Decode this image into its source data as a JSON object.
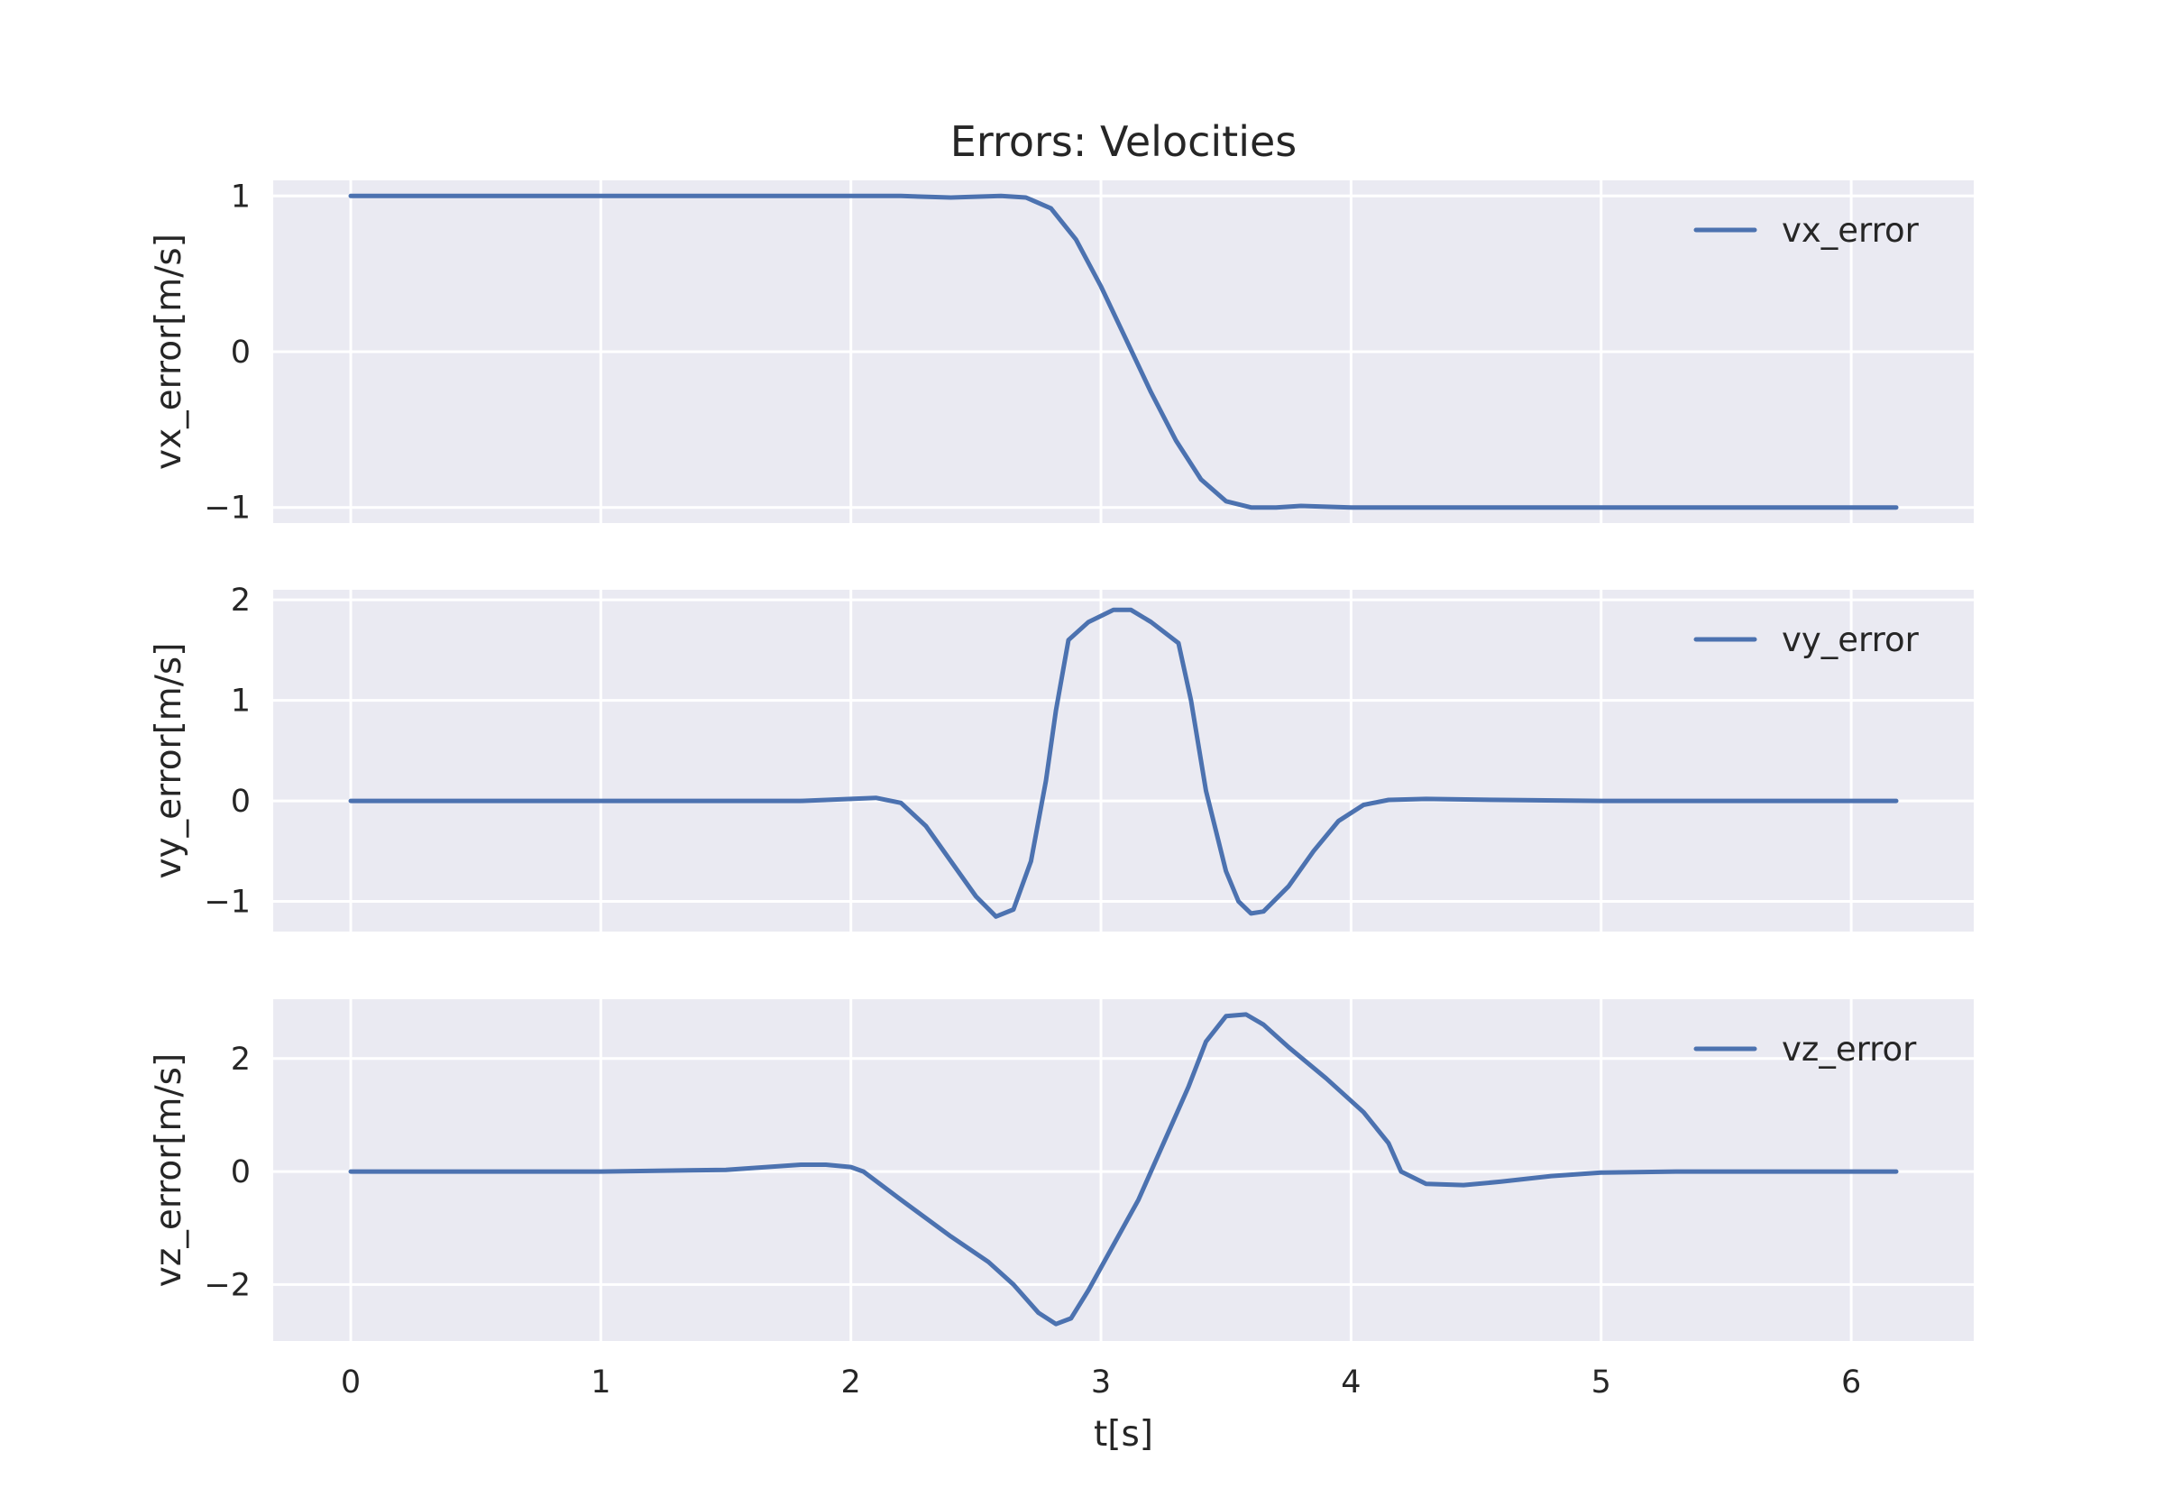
{
  "title": "Errors: Velocities",
  "xlabel": "t[s]",
  "colors": {
    "line": "#4c72b0",
    "panel_bg": "#eaeaf2",
    "grid": "#ffffff",
    "text": "#262626"
  },
  "chart_data": [
    {
      "type": "line",
      "ylabel": "vx_error[m/s]",
      "xlim": [
        -0.31,
        6.49
      ],
      "ylim": [
        -1.1,
        1.1
      ],
      "xticks": [
        0,
        1,
        2,
        3,
        4,
        5,
        6
      ],
      "yticks": [
        -1,
        0,
        1
      ],
      "ytick_labels": [
        "−1",
        "0",
        "1"
      ],
      "grid": true,
      "legend_position": "upper-right",
      "series": [
        {
          "name": "vx_error",
          "points": [
            [
              0,
              1.0
            ],
            [
              0.5,
              1.0
            ],
            [
              1.0,
              1.0
            ],
            [
              1.5,
              1.0
            ],
            [
              2.0,
              1.0
            ],
            [
              2.2,
              1.0
            ],
            [
              2.4,
              0.99
            ],
            [
              2.6,
              1.0
            ],
            [
              2.7,
              0.99
            ],
            [
              2.8,
              0.92
            ],
            [
              2.9,
              0.72
            ],
            [
              3.0,
              0.42
            ],
            [
              3.1,
              0.08
            ],
            [
              3.2,
              -0.26
            ],
            [
              3.3,
              -0.57
            ],
            [
              3.4,
              -0.82
            ],
            [
              3.5,
              -0.96
            ],
            [
              3.6,
              -1.0
            ],
            [
              3.7,
              -1.0
            ],
            [
              3.8,
              -0.99
            ],
            [
              4.0,
              -1.0
            ],
            [
              4.5,
              -1.0
            ],
            [
              5.0,
              -1.0
            ],
            [
              5.5,
              -1.0
            ],
            [
              6.0,
              -1.0
            ],
            [
              6.18,
              -1.0
            ]
          ]
        }
      ]
    },
    {
      "type": "line",
      "ylabel": "vy_error[m/s]",
      "xlim": [
        -0.31,
        6.49
      ],
      "ylim": [
        -1.3,
        2.1
      ],
      "xticks": [
        0,
        1,
        2,
        3,
        4,
        5,
        6
      ],
      "yticks": [
        -1,
        0,
        1,
        2
      ],
      "ytick_labels": [
        "−1",
        "0",
        "1",
        "2"
      ],
      "grid": true,
      "legend_position": "upper-right",
      "series": [
        {
          "name": "vy_error",
          "points": [
            [
              0,
              0.0
            ],
            [
              0.5,
              0.0
            ],
            [
              1.0,
              0.0
            ],
            [
              1.5,
              0.0
            ],
            [
              1.8,
              0.0
            ],
            [
              2.0,
              0.02
            ],
            [
              2.1,
              0.03
            ],
            [
              2.2,
              -0.02
            ],
            [
              2.3,
              -0.25
            ],
            [
              2.4,
              -0.6
            ],
            [
              2.5,
              -0.95
            ],
            [
              2.58,
              -1.15
            ],
            [
              2.65,
              -1.08
            ],
            [
              2.72,
              -0.6
            ],
            [
              2.78,
              0.2
            ],
            [
              2.82,
              0.9
            ],
            [
              2.87,
              1.6
            ],
            [
              2.95,
              1.78
            ],
            [
              3.05,
              1.9
            ],
            [
              3.12,
              1.9
            ],
            [
              3.2,
              1.78
            ],
            [
              3.31,
              1.57
            ],
            [
              3.36,
              1.0
            ],
            [
              3.42,
              0.1
            ],
            [
              3.5,
              -0.7
            ],
            [
              3.55,
              -1.0
            ],
            [
              3.6,
              -1.12
            ],
            [
              3.65,
              -1.1
            ],
            [
              3.75,
              -0.85
            ],
            [
              3.85,
              -0.5
            ],
            [
              3.95,
              -0.2
            ],
            [
              4.05,
              -0.04
            ],
            [
              4.15,
              0.01
            ],
            [
              4.3,
              0.02
            ],
            [
              4.6,
              0.01
            ],
            [
              5.0,
              0.0
            ],
            [
              5.5,
              0.0
            ],
            [
              6.0,
              0.0
            ],
            [
              6.18,
              0.0
            ]
          ]
        }
      ]
    },
    {
      "type": "line",
      "ylabel": "vz_error[m/s]",
      "xlabel": "t[s]",
      "xlim": [
        -0.31,
        6.49
      ],
      "ylim": [
        -3.0,
        3.05
      ],
      "xticks": [
        0,
        1,
        2,
        3,
        4,
        5,
        6
      ],
      "xtick_labels": [
        "0",
        "1",
        "2",
        "3",
        "4",
        "5",
        "6"
      ],
      "yticks": [
        -2,
        0,
        2
      ],
      "ytick_labels": [
        "−2",
        "0",
        "2"
      ],
      "grid": true,
      "legend_position": "upper-right",
      "series": [
        {
          "name": "vz_error",
          "points": [
            [
              0,
              0.0
            ],
            [
              0.5,
              0.0
            ],
            [
              1.0,
              0.0
            ],
            [
              1.5,
              0.03
            ],
            [
              1.8,
              0.12
            ],
            [
              1.9,
              0.12
            ],
            [
              2.0,
              0.08
            ],
            [
              2.05,
              0.0
            ],
            [
              2.2,
              -0.5
            ],
            [
              2.4,
              -1.15
            ],
            [
              2.55,
              -1.6
            ],
            [
              2.65,
              -2.0
            ],
            [
              2.75,
              -2.5
            ],
            [
              2.82,
              -2.7
            ],
            [
              2.88,
              -2.6
            ],
            [
              2.95,
              -2.1
            ],
            [
              3.05,
              -1.3
            ],
            [
              3.15,
              -0.5
            ],
            [
              3.25,
              0.5
            ],
            [
              3.35,
              1.5
            ],
            [
              3.42,
              2.3
            ],
            [
              3.5,
              2.75
            ],
            [
              3.58,
              2.78
            ],
            [
              3.65,
              2.6
            ],
            [
              3.75,
              2.2
            ],
            [
              3.9,
              1.65
            ],
            [
              4.05,
              1.05
            ],
            [
              4.15,
              0.5
            ],
            [
              4.2,
              0.0
            ],
            [
              4.3,
              -0.22
            ],
            [
              4.45,
              -0.24
            ],
            [
              4.6,
              -0.18
            ],
            [
              4.8,
              -0.08
            ],
            [
              5.0,
              -0.02
            ],
            [
              5.3,
              0.0
            ],
            [
              5.6,
              0.0
            ],
            [
              6.0,
              0.0
            ],
            [
              6.18,
              0.0
            ]
          ]
        }
      ]
    }
  ]
}
